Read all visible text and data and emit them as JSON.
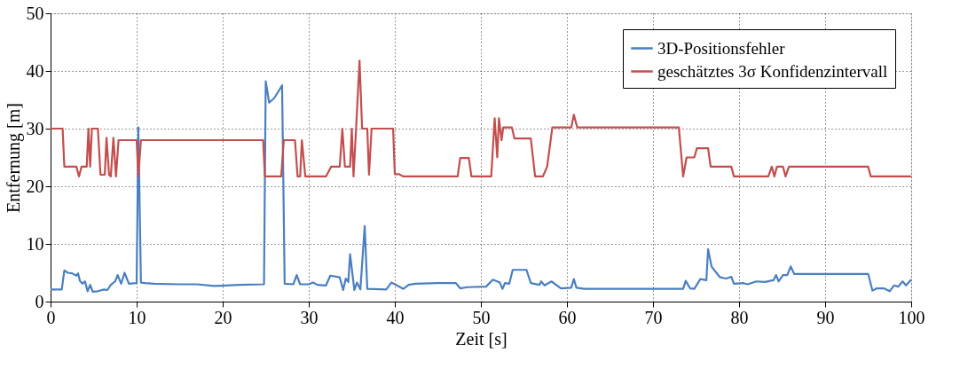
{
  "chart_data": {
    "type": "line",
    "xlabel": "Zeit [s]",
    "ylabel": "Entfernung [m]",
    "xlim": [
      0,
      100
    ],
    "ylim": [
      0,
      50
    ],
    "xticks": [
      0,
      10,
      20,
      30,
      40,
      50,
      60,
      70,
      80,
      90,
      100
    ],
    "yticks": [
      0,
      10,
      20,
      30,
      40,
      50
    ],
    "grid": true,
    "legend": "top right",
    "line_style": "solid",
    "marker": "none",
    "series": [
      {
        "name": "3D-Positionsfehler",
        "color": "#4a7fc1",
        "x": [
          0,
          1.3,
          1.6,
          2,
          2.5,
          3,
          3.2,
          3.4,
          3.7,
          4,
          4.3,
          4.6,
          4.9,
          5.5,
          6.2,
          6.6,
          7,
          7.5,
          7.8,
          8.2,
          8.6,
          9.1,
          10,
          10.2,
          10.5,
          11,
          12,
          15,
          17,
          19,
          22,
          24.8,
          25,
          25.4,
          26,
          26.9,
          27.2,
          28.2,
          28.6,
          29,
          30,
          30.5,
          31,
          32,
          32.5,
          33.6,
          34,
          34.3,
          34.6,
          34.8,
          35.3,
          35.6,
          36,
          36.5,
          36.8,
          39,
          39.6,
          40,
          41,
          41.6,
          42.4,
          45,
          47.1,
          47.6,
          48.4,
          50.6,
          51.4,
          52.2,
          52.5,
          52.8,
          53.3,
          53.7,
          55.3,
          55.8,
          56.8,
          57,
          57.4,
          58.2,
          59.3,
          60.5,
          60.8,
          61.1,
          62,
          73.5,
          73.8,
          74.3,
          74.8,
          75.5,
          76.2,
          76.4,
          76.8,
          77.2,
          77.8,
          78.5,
          79.1,
          79.4,
          80.5,
          81,
          82,
          83,
          84,
          84.3,
          84.6,
          85.1,
          85.6,
          86,
          86.4,
          90,
          95,
          95.5,
          96,
          96.8,
          97.5,
          98,
          98.5,
          99,
          99.4,
          100
        ],
        "values": [
          2.1,
          2.1,
          5.4,
          5,
          4.9,
          4.5,
          4.9,
          3.6,
          3.1,
          3.5,
          1.8,
          2.9,
          1.7,
          1.8,
          2.1,
          2,
          2.9,
          3.5,
          4.6,
          3.1,
          5,
          3.1,
          3.2,
          30.2,
          3.3,
          3.2,
          3.1,
          3,
          3,
          2.7,
          2.9,
          3,
          38.2,
          34.5,
          35.3,
          37.5,
          3.1,
          3,
          4.6,
          3,
          3,
          3.3,
          2.9,
          2.8,
          4.5,
          4.2,
          2,
          4,
          3.4,
          8.2,
          2,
          3.3,
          2.1,
          13.1,
          2.2,
          2.1,
          3.3,
          3,
          2.2,
          2.9,
          3.1,
          3.2,
          3.2,
          2.3,
          2.5,
          2.6,
          3.8,
          3.3,
          2.2,
          3.2,
          3.1,
          5.5,
          5.5,
          3.2,
          2.9,
          3.5,
          2.8,
          3.5,
          2.3,
          2.4,
          3.9,
          2.4,
          2.2,
          2.2,
          3.6,
          2.3,
          2.2,
          3.9,
          3.7,
          9.1,
          6.1,
          5.3,
          4.2,
          4,
          4.3,
          3.1,
          3.2,
          3,
          3.5,
          3.4,
          3.7,
          4.6,
          3.5,
          4.6,
          4.6,
          6.1,
          4.8,
          4.8,
          4.8,
          1.9,
          2.3,
          2.3,
          1.8,
          2.8,
          2.6,
          3.5,
          2.8,
          3.8
        ]
      },
      {
        "name": "geschätztes 3σ Konfidenzintervall",
        "color": "#c44e4e",
        "x": [
          0,
          1.4,
          1.6,
          3,
          3.3,
          3.6,
          4.2,
          4.4,
          4.6,
          4.8,
          5.5,
          5.8,
          6.3,
          6.5,
          6.8,
          7,
          7.3,
          7.6,
          7.9,
          10,
          10.2,
          10.5,
          24.7,
          24.9,
          26.8,
          27.1,
          28.4,
          28.7,
          29,
          29.2,
          29.6,
          32,
          32.6,
          33.6,
          33.9,
          34.2,
          34.8,
          35,
          35.2,
          35.5,
          35.9,
          36.2,
          36.8,
          37,
          37.3,
          39.8,
          40,
          40.5,
          41,
          47.3,
          47.6,
          48.6,
          48.9,
          51.2,
          51.6,
          51.9,
          52.1,
          52.4,
          52.6,
          53.6,
          53.9,
          55.8,
          56.3,
          57.2,
          57.7,
          58.3,
          60.5,
          60.8,
          61.2,
          73,
          73.5,
          73.9,
          74.8,
          75.1,
          76.4,
          76.7,
          79.1,
          79.4,
          83.4,
          83.8,
          84.1,
          84.4,
          85.1,
          85.4,
          85.8,
          95,
          95.3,
          100
        ],
        "values": [
          30,
          30,
          23.4,
          23.4,
          21.7,
          23.4,
          23.4,
          30,
          23.4,
          30,
          30,
          22,
          22,
          28.4,
          22,
          21.7,
          28.4,
          21.7,
          28,
          28,
          21.7,
          28,
          28,
          21.7,
          21.7,
          28,
          28,
          21.7,
          21.7,
          28,
          21.7,
          21.7,
          23.4,
          23.4,
          30,
          23.4,
          23.4,
          30,
          21.7,
          30,
          41.8,
          30,
          30,
          22,
          30,
          30,
          22.1,
          22.1,
          21.7,
          21.7,
          24.9,
          24.9,
          21.7,
          21.7,
          31.8,
          25,
          31.8,
          28,
          30.2,
          30.2,
          28.3,
          28.3,
          21.7,
          21.7,
          23.4,
          30.2,
          30.2,
          32.4,
          30.2,
          30.2,
          21.7,
          25,
          25,
          26.6,
          26.6,
          23.4,
          23.4,
          21.7,
          21.7,
          23.4,
          21.7,
          23.4,
          23.4,
          21.7,
          23.4,
          23.4,
          21.7,
          21.7
        ]
      }
    ]
  }
}
